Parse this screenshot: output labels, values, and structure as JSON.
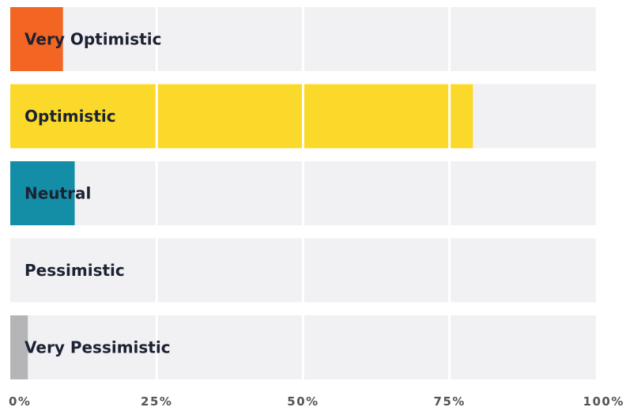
{
  "chart_data": {
    "type": "bar",
    "orientation": "horizontal",
    "categories": [
      "Very Optimistic",
      "Optimistic",
      "Neutral",
      "Pessimistic",
      "Very Pessimistic"
    ],
    "values": [
      9,
      79,
      11,
      0,
      3
    ],
    "xlim": [
      0,
      100
    ],
    "x_ticks": [
      "0%",
      "25%",
      "50%",
      "75%",
      "100%"
    ],
    "grid": true,
    "colors": [
      "#f26522",
      "#fbd92a",
      "#148ea6",
      "#b5b5b8",
      "#b5b5b8"
    ],
    "track_color": "#f1f1f3",
    "label_color": "#1c2233"
  }
}
